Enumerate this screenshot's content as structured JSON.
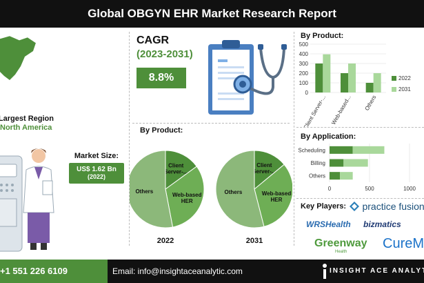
{
  "title": "Global OBGYN EHR Market Research Report",
  "region": {
    "label": "Largest Region:",
    "value": "North America"
  },
  "cagr": {
    "label": "CAGR",
    "period": "(2023-2031)",
    "value": "8.8%"
  },
  "market_size": {
    "label": "Market Size:",
    "value": "US$ 1.62 Bn",
    "year": "(2022)"
  },
  "pies": {
    "title": "By Product:",
    "charts": [
      {
        "year": "2022",
        "slices": [
          {
            "label": "Client Server-...",
            "value": 15
          },
          {
            "label": "Web-based HER",
            "value": 32
          },
          {
            "label": "Others",
            "value": 53
          }
        ]
      },
      {
        "year": "2031",
        "slices": [
          {
            "label": "Client Server-...",
            "value": 14
          },
          {
            "label": "Web-based HER",
            "value": 32
          },
          {
            "label": "Others",
            "value": 54
          }
        ]
      }
    ]
  },
  "chart_data": [
    {
      "type": "bar",
      "title": "By Product:",
      "categories": [
        "Client Server-...",
        "Web-based...",
        "Others"
      ],
      "series": [
        {
          "name": "2022",
          "values": [
            300,
            200,
            100
          ]
        },
        {
          "name": "2031",
          "values": [
            395,
            300,
            200
          ]
        }
      ],
      "ylim": [
        0,
        500
      ],
      "yticks": [
        "0",
        "100",
        "200",
        "300",
        "400",
        "500"
      ],
      "grid": true,
      "legend": "right",
      "colors": [
        "#4e8f3a",
        "#a9d89b"
      ]
    },
    {
      "type": "bar",
      "orientation": "horizontal",
      "title": "By Application:",
      "categories": [
        "Scheduling",
        "Billing",
        "Others"
      ],
      "series": [
        {
          "name": "2022",
          "values": [
            290,
            175,
            130
          ]
        },
        {
          "name": "2031",
          "values": [
            395,
            305,
            160
          ]
        }
      ],
      "stacked": true,
      "xlim": [
        0,
        1000
      ],
      "xticks": [
        "0",
        "500",
        "1000"
      ],
      "colors": [
        "#4e8f3a",
        "#a9d89b"
      ]
    }
  ],
  "key_players": {
    "label": "Key Players:",
    "logos": [
      "practice fusion",
      "WRSHealth",
      "bizmatics",
      "Greenway",
      "Health",
      "CureMD"
    ]
  },
  "contact": {
    "phone": "+1 551 226 6109",
    "email": "Email: info@insightaceanalytic.com",
    "brand": "INSIGHT ACE ANALYTIC"
  },
  "colors": {
    "dark_green": "#4e8f3a",
    "light_green": "#a9d89b",
    "mid_green": "#6eae55",
    "pie_green": "#8cb87a",
    "black": "#111111"
  }
}
